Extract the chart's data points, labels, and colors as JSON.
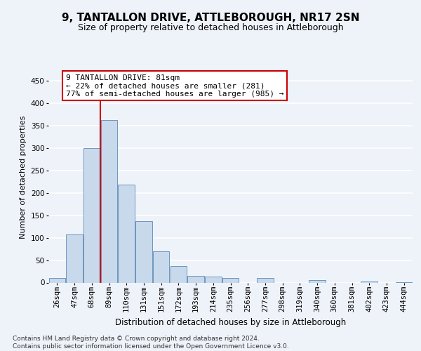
{
  "title1": "9, TANTALLON DRIVE, ATTLEBOROUGH, NR17 2SN",
  "title2": "Size of property relative to detached houses in Attleborough",
  "xlabel": "Distribution of detached houses by size in Attleborough",
  "ylabel": "Number of detached properties",
  "bins": [
    "26sqm",
    "47sqm",
    "68sqm",
    "89sqm",
    "110sqm",
    "131sqm",
    "151sqm",
    "172sqm",
    "193sqm",
    "214sqm",
    "235sqm",
    "256sqm",
    "277sqm",
    "298sqm",
    "319sqm",
    "340sqm",
    "360sqm",
    "381sqm",
    "402sqm",
    "423sqm",
    "444sqm"
  ],
  "values": [
    10,
    107,
    300,
    362,
    218,
    137,
    70,
    37,
    15,
    13,
    10,
    0,
    10,
    0,
    0,
    5,
    0,
    0,
    2,
    0,
    1
  ],
  "bar_color": "#c9d9ec",
  "bar_edge_color": "#5b8ab5",
  "vline_color": "#cc0000",
  "annotation_text": "9 TANTALLON DRIVE: 81sqm\n← 22% of detached houses are smaller (281)\n77% of semi-detached houses are larger (985) →",
  "annotation_box_color": "white",
  "annotation_box_edge": "#cc0000",
  "ylim": [
    0,
    470
  ],
  "yticks": [
    0,
    50,
    100,
    150,
    200,
    250,
    300,
    350,
    400,
    450
  ],
  "background_color": "#eef2f9",
  "grid_color": "#ffffff",
  "footer": "Contains HM Land Registry data © Crown copyright and database right 2024.\nContains public sector information licensed under the Open Government Licence v3.0.",
  "title1_fontsize": 11,
  "title2_fontsize": 9,
  "xlabel_fontsize": 8.5,
  "ylabel_fontsize": 8,
  "tick_fontsize": 7.5,
  "annotation_fontsize": 8,
  "footer_fontsize": 6.5
}
